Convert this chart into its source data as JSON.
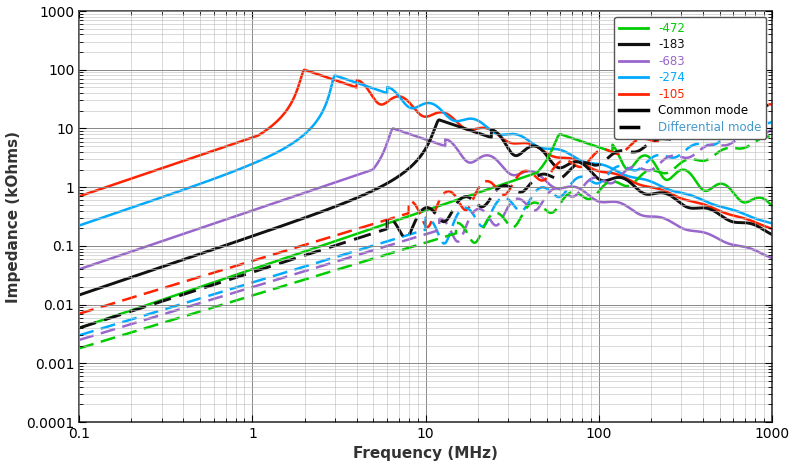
{
  "xlabel": "Frequency (MHz)",
  "ylabel": "Impedance (kOhms)",
  "xlim": [
    0.1,
    1000
  ],
  "ylim": [
    0.0001,
    1000
  ],
  "legend_labels": [
    "-472",
    "-183",
    "-683",
    "-274",
    "-105"
  ],
  "cm_colors": [
    "#00cc00",
    "#111111",
    "#9966cc",
    "#00aaff",
    "#ff2200"
  ],
  "common_mode_label": "Common mode",
  "differential_mode_label": "Differential mode"
}
